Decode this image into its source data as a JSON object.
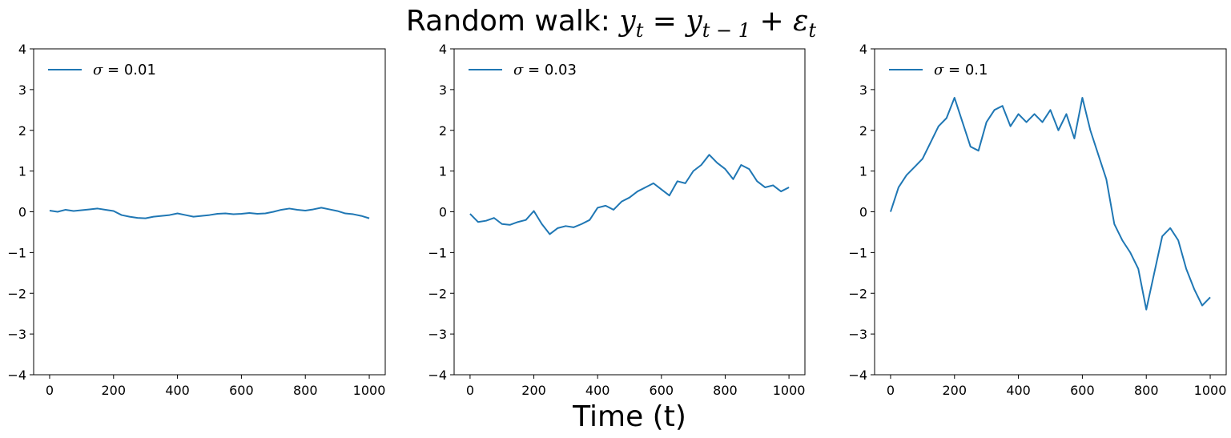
{
  "figure": {
    "title_prefix": "Random walk: ",
    "title_math": "y",
    "xlabel": "Time (t)"
  },
  "chart_data": [
    {
      "type": "line",
      "legend": "σ = 0.01",
      "legend_symbol": "σ",
      "legend_value": " = 0.01",
      "legend_position": "upper-left",
      "xlim": [
        -50,
        1050
      ],
      "ylim": [
        -4,
        4
      ],
      "xticks": [
        0,
        200,
        400,
        600,
        800,
        1000
      ],
      "yticks": [
        -4,
        -3,
        -2,
        -1,
        0,
        1,
        2,
        3,
        4
      ],
      "ytick_labels": [
        "−4",
        "−3",
        "−2",
        "−1",
        "0",
        "1",
        "2",
        "3",
        "4"
      ],
      "color": "#1f77b4",
      "grid": false,
      "series": [
        {
          "x": [
            0,
            25,
            50,
            75,
            100,
            125,
            150,
            175,
            200,
            225,
            250,
            275,
            300,
            325,
            350,
            375,
            400,
            425,
            450,
            475,
            500,
            525,
            550,
            575,
            600,
            625,
            650,
            675,
            700,
            725,
            750,
            775,
            800,
            825,
            850,
            875,
            900,
            925,
            950,
            975,
            1000
          ],
          "y": [
            0.03,
            0.0,
            0.05,
            0.02,
            0.04,
            0.06,
            0.08,
            0.05,
            0.02,
            -0.08,
            -0.12,
            -0.15,
            -0.16,
            -0.12,
            -0.1,
            -0.08,
            -0.04,
            -0.08,
            -0.12,
            -0.1,
            -0.08,
            -0.05,
            -0.04,
            -0.06,
            -0.05,
            -0.03,
            -0.05,
            -0.04,
            0.0,
            0.05,
            0.08,
            0.05,
            0.03,
            0.06,
            0.1,
            0.06,
            0.02,
            -0.04,
            -0.06,
            -0.1,
            -0.16
          ]
        }
      ]
    },
    {
      "type": "line",
      "legend": "σ = 0.03",
      "legend_symbol": "σ",
      "legend_value": " = 0.03",
      "legend_position": "upper-left",
      "xlim": [
        -50,
        1050
      ],
      "ylim": [
        -4,
        4
      ],
      "xticks": [
        0,
        200,
        400,
        600,
        800,
        1000
      ],
      "yticks": [
        -4,
        -3,
        -2,
        -1,
        0,
        1,
        2,
        3,
        4
      ],
      "ytick_labels": [
        "−4",
        "−3",
        "−2",
        "−1",
        "0",
        "1",
        "2",
        "3",
        "4"
      ],
      "color": "#1f77b4",
      "grid": false,
      "series": [
        {
          "x": [
            0,
            25,
            50,
            75,
            100,
            125,
            150,
            175,
            200,
            225,
            250,
            275,
            300,
            325,
            350,
            375,
            400,
            425,
            450,
            475,
            500,
            525,
            550,
            575,
            600,
            625,
            650,
            675,
            700,
            725,
            750,
            775,
            800,
            825,
            850,
            875,
            900,
            925,
            950,
            975,
            1000
          ],
          "y": [
            -0.05,
            -0.25,
            -0.22,
            -0.15,
            -0.3,
            -0.32,
            -0.25,
            -0.2,
            0.02,
            -0.3,
            -0.55,
            -0.4,
            -0.35,
            -0.38,
            -0.3,
            -0.2,
            0.1,
            0.15,
            0.05,
            0.25,
            0.35,
            0.5,
            0.6,
            0.7,
            0.55,
            0.4,
            0.75,
            0.7,
            1.0,
            1.15,
            1.4,
            1.2,
            1.05,
            0.8,
            1.15,
            1.05,
            0.75,
            0.6,
            0.65,
            0.5,
            0.6
          ]
        }
      ]
    },
    {
      "type": "line",
      "legend": "σ = 0.1",
      "legend_symbol": "σ",
      "legend_value": " = 0.1",
      "legend_position": "upper-left",
      "xlim": [
        -50,
        1050
      ],
      "ylim": [
        -4,
        4
      ],
      "xticks": [
        0,
        200,
        400,
        600,
        800,
        1000
      ],
      "yticks": [
        -4,
        -3,
        -2,
        -1,
        0,
        1,
        2,
        3,
        4
      ],
      "ytick_labels": [
        "−4",
        "−3",
        "−2",
        "−1",
        "0",
        "1",
        "2",
        "3",
        "4"
      ],
      "color": "#1f77b4",
      "grid": false,
      "series": [
        {
          "x": [
            0,
            25,
            50,
            75,
            100,
            125,
            150,
            175,
            200,
            225,
            250,
            275,
            300,
            325,
            350,
            375,
            400,
            425,
            450,
            475,
            500,
            525,
            550,
            575,
            600,
            625,
            650,
            675,
            700,
            725,
            750,
            775,
            800,
            825,
            850,
            875,
            900,
            925,
            950,
            975,
            1000
          ],
          "y": [
            0.0,
            0.6,
            0.9,
            1.1,
            1.3,
            1.7,
            2.1,
            2.3,
            2.8,
            2.2,
            1.6,
            1.5,
            2.2,
            2.5,
            2.6,
            2.1,
            2.4,
            2.2,
            2.4,
            2.2,
            2.5,
            2.0,
            2.4,
            1.8,
            2.8,
            2.0,
            1.4,
            0.8,
            -0.3,
            -0.7,
            -1.0,
            -1.4,
            -2.4,
            -1.5,
            -0.6,
            -0.4,
            -0.7,
            -1.4,
            -1.9,
            -2.3,
            -2.1
          ]
        }
      ]
    }
  ]
}
